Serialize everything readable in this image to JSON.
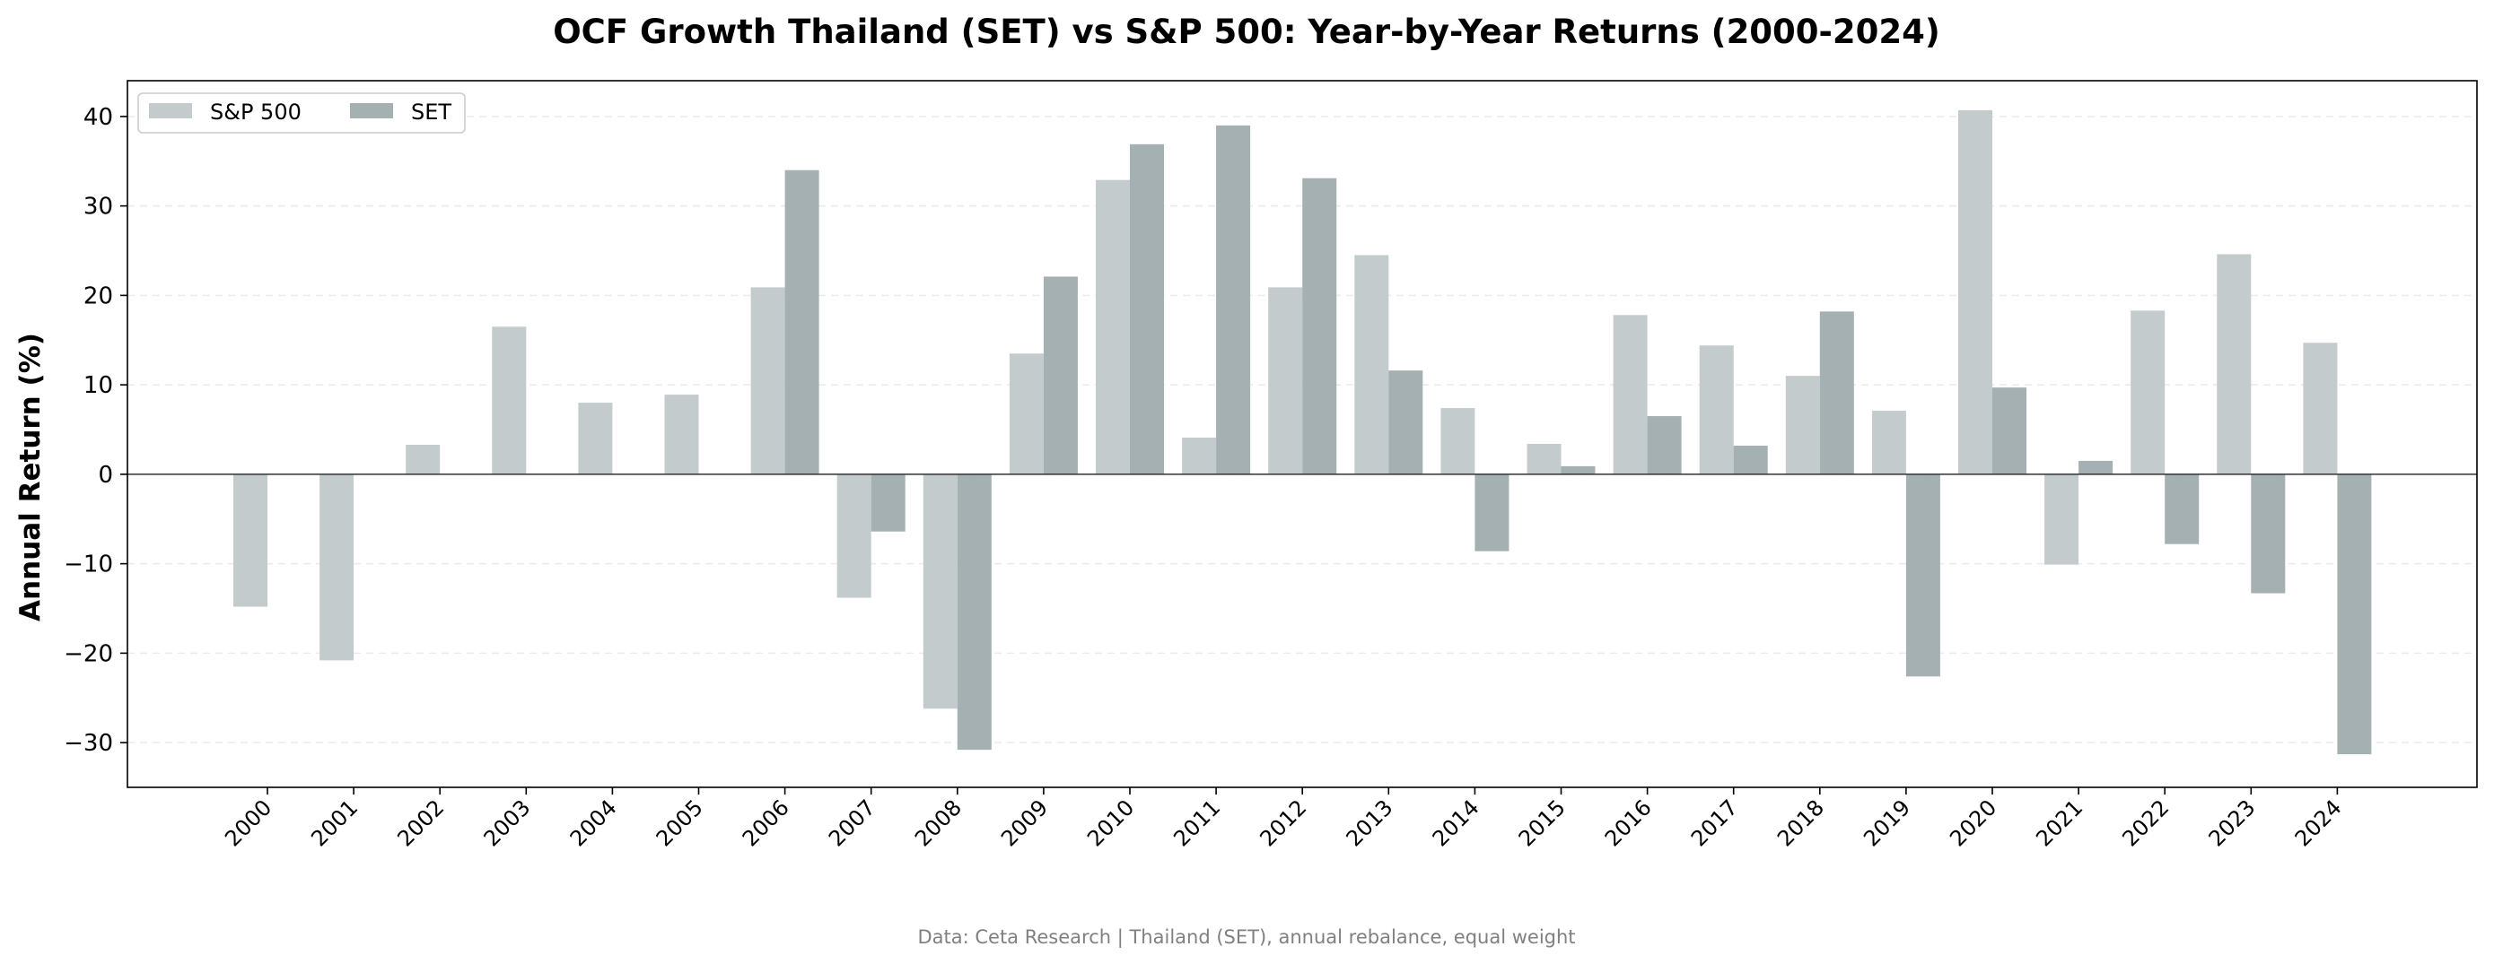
{
  "chart_data": {
    "type": "bar",
    "title": "OCF Growth Thailand (SET) vs S&P 500: Year-by-Year Returns (2000-2024)",
    "xlabel": "",
    "ylabel": "Annual Return (%)",
    "ylim": [
      -35,
      44
    ],
    "yticks": [
      -30,
      -20,
      -10,
      0,
      10,
      20,
      30,
      40
    ],
    "ytick_labels": [
      "−30",
      "−20",
      "−10",
      "0",
      "10",
      "20",
      "30",
      "40"
    ],
    "grid": "horizontal dashed",
    "legend_position": "top-left",
    "categories": [
      "2000",
      "2001",
      "2002",
      "2003",
      "2004",
      "2005",
      "2006",
      "2007",
      "2008",
      "2009",
      "2010",
      "2011",
      "2012",
      "2013",
      "2014",
      "2015",
      "2016",
      "2017",
      "2018",
      "2019",
      "2020",
      "2021",
      "2022",
      "2023",
      "2024"
    ],
    "series": [
      {
        "name": "S&P 500",
        "color": "#c3cbcc",
        "values": [
          -14.8,
          -20.8,
          3.3,
          16.5,
          8.0,
          8.9,
          20.9,
          -13.8,
          -26.2,
          13.5,
          32.9,
          4.1,
          20.9,
          24.5,
          7.4,
          3.4,
          17.8,
          14.4,
          11.0,
          7.1,
          40.7,
          -10.1,
          18.3,
          24.6,
          14.7
        ]
      },
      {
        "name": "SET",
        "color": "#a4b0b1",
        "values": [
          0,
          0,
          0,
          0,
          0,
          0,
          34.0,
          -6.4,
          -30.8,
          22.1,
          36.9,
          39.0,
          33.1,
          11.6,
          -8.6,
          0.9,
          6.5,
          3.2,
          18.2,
          -22.6,
          9.7,
          1.5,
          -7.8,
          -13.3,
          -31.3
        ]
      }
    ],
    "footnote": "Data: Ceta Research | Thailand (SET), annual rebalance, equal weight"
  }
}
